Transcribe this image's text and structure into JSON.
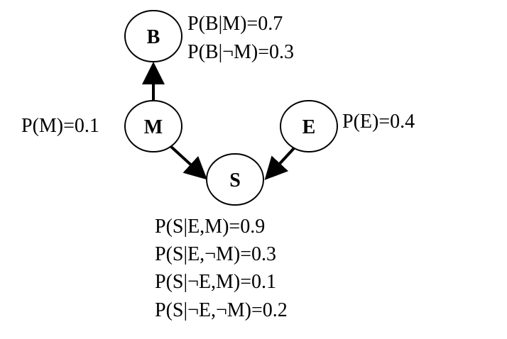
{
  "nodes": {
    "B": {
      "label": "B"
    },
    "M": {
      "label": "M"
    },
    "E": {
      "label": "E"
    },
    "S": {
      "label": "S"
    }
  },
  "probabilities": {
    "M": [
      "P(M)=0.1"
    ],
    "E": [
      "P(E)=0.4"
    ],
    "B": [
      "P(B|M)=0.7",
      "P(B|¬M)=0.3"
    ],
    "S": [
      "P(S|E,M)=0.9",
      "P(S|E,¬M)=0.3",
      "P(S|¬E,M)=0.1",
      "P(S|¬E,¬M)=0.2"
    ]
  },
  "edges": [
    {
      "from": "M",
      "to": "B"
    },
    {
      "from": "M",
      "to": "S"
    },
    {
      "from": "E",
      "to": "S"
    }
  ],
  "colors": {
    "stroke": "#000000",
    "background": "#ffffff"
  }
}
